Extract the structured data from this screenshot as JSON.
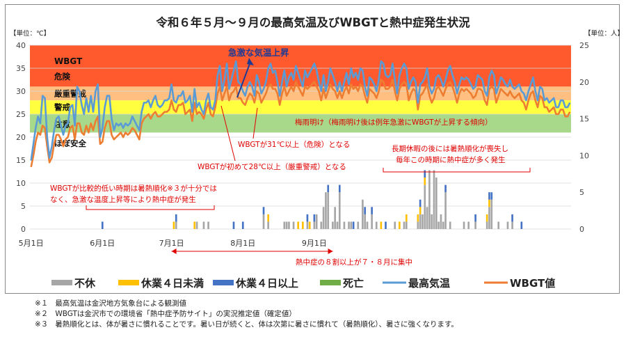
{
  "chart_data": {
    "type": "bar+line",
    "title": "令和６年５月～９月の最高気温及びWBGTと熱中症発生状況",
    "left_axis": {
      "unit_label": "【単位：℃】",
      "ylim": [
        0,
        40
      ],
      "ticks": [
        0,
        5,
        10,
        15,
        20,
        25,
        30,
        35,
        40
      ]
    },
    "right_axis": {
      "unit_label": "【単位：人】",
      "ylim": [
        0,
        25
      ],
      "ticks": [
        0,
        5,
        10,
        15,
        20,
        25
      ]
    },
    "x_ticks": [
      "5月1日",
      "6月1日",
      "7月1日",
      "8月1日",
      "9月1日"
    ],
    "bands": [
      {
        "label": "WBGT",
        "from": 31,
        "to": 40,
        "color": "#ff5a2e"
      },
      {
        "label": "危険",
        "from": 31,
        "to": 40,
        "color": "#ff5a2e"
      },
      {
        "label": "厳重警戒",
        "from": 28,
        "to": 31,
        "color": "#ffbf80"
      },
      {
        "label": "警戒",
        "from": 25,
        "to": 28,
        "color": "#ffff40"
      },
      {
        "label": "注意",
        "from": 21,
        "to": 25,
        "color": "#a8d88a"
      },
      {
        "label": "ほぼ安全",
        "from": 0,
        "to": 21,
        "color": "#ffffff"
      }
    ],
    "series": [
      {
        "name": "最高気温",
        "color": "#5b9bd5",
        "values": [
          14.9,
          18.5,
          22.0,
          24.5,
          23.0,
          29.0,
          28.5,
          20.0,
          15.5,
          18.0,
          21.5,
          24.0,
          24.5,
          22.5,
          20.5,
          22.5,
          23.0,
          26.5,
          27.0,
          22.5,
          31.0,
          30.0,
          27.0,
          25.0,
          28.5,
          25.5,
          29.0,
          25.5,
          30.0,
          31.5,
          20.0,
          22.0,
          26.5,
          29.0,
          29.0,
          24.0,
          21.5,
          23.0,
          22.5,
          23.0,
          22.0,
          23.0,
          22.5,
          23.0,
          24.5,
          23.5,
          22.5,
          21.5,
          25.5,
          27.5,
          27.5,
          28.0,
          26.5,
          28.0,
          29.0,
          27.0,
          26.5,
          27.0,
          28.0,
          28.0,
          28.5,
          31.5,
          28.0,
          27.5,
          29.0,
          29.0,
          30.0,
          27.5,
          28.0,
          29.0,
          25.5,
          30.5,
          26.5,
          27.5,
          26.0,
          25.0,
          28.0,
          29.5,
          26.5,
          26.0,
          28.0,
          33.5,
          35.5,
          30.0,
          32.5,
          36.0,
          30.5,
          32.5,
          34.5,
          36.5,
          32.0,
          31.5,
          30.0,
          29.0,
          31.0,
          32.0,
          31.0,
          29.0,
          33.5,
          32.0,
          29.5,
          30.5,
          32.0,
          35.0,
          36.0,
          34.0,
          34.5,
          32.0,
          29.0,
          32.0,
          34.5,
          31.0,
          33.0,
          34.0,
          32.5,
          35.5,
          34.0,
          32.5,
          31.0,
          34.5,
          33.0,
          34.0,
          35.0,
          36.0,
          34.5,
          32.0,
          30.0,
          33.5,
          30.0,
          32.0,
          35.0,
          33.5,
          32.0,
          30.0,
          32.0,
          30.0,
          32.0,
          34.0,
          31.5,
          35.0,
          33.0,
          34.0,
          32.5,
          35.0,
          34.5,
          31.0,
          29.0,
          33.0,
          32.5,
          31.5,
          30.0,
          32.5,
          36.5,
          36.0,
          33.5,
          33.0,
          33.5,
          36.0,
          32.5,
          29.5,
          33.5,
          35.0,
          36.0,
          35.0,
          30.5,
          32.0,
          33.0,
          32.0,
          27.5,
          31.5,
          32.0,
          33.0,
          35.0,
          31.0,
          29.5,
          30.5,
          33.0,
          33.5,
          32.5,
          31.0,
          32.5,
          34.5,
          35.5,
          33.5,
          32.0,
          29.5,
          31.5,
          33.0,
          32.5,
          33.0,
          32.5,
          31.5,
          30.5,
          31.0,
          33.5,
          33.0,
          32.5,
          30.0,
          29.0,
          33.0,
          34.5,
          33.5,
          29.5,
          31.0,
          33.0,
          32.5,
          31.5,
          31.0,
          32.5,
          31.0,
          30.5,
          31.0,
          31.5,
          30.0,
          29.5,
          28.0,
          30.0,
          31.5,
          33.0,
          30.0,
          28.0,
          31.0,
          30.5,
          28.0,
          28.5,
          27.5,
          28.0,
          28.5,
          26.5,
          26.5,
          28.0,
          28.0,
          26.5,
          26.5,
          27.5
        ]
      },
      {
        "name": "WBGT値",
        "color": "#ed7d31",
        "values": [
          13.5,
          16.0,
          19.0,
          21.0,
          20.5,
          22.5,
          22.0,
          18.0,
          14.5,
          15.5,
          18.5,
          20.5,
          20.5,
          19.5,
          18.0,
          19.5,
          20.0,
          22.0,
          22.5,
          19.5,
          23.0,
          23.0,
          21.0,
          20.5,
          22.5,
          21.0,
          23.0,
          21.5,
          23.5,
          24.5,
          18.5,
          19.0,
          22.0,
          23.5,
          23.5,
          20.5,
          19.5,
          20.0,
          20.5,
          21.0,
          20.0,
          21.0,
          20.5,
          21.0,
          22.0,
          21.5,
          20.5,
          19.5,
          23.0,
          24.0,
          24.5,
          25.0,
          24.0,
          25.0,
          25.5,
          24.5,
          24.5,
          25.0,
          25.5,
          25.5,
          26.0,
          28.0,
          26.0,
          25.5,
          27.0,
          27.0,
          27.5,
          25.0,
          25.5,
          26.0,
          23.5,
          27.5,
          25.0,
          25.5,
          25.0,
          24.0,
          26.0,
          27.5,
          25.0,
          24.5,
          26.5,
          29.5,
          31.0,
          28.0,
          29.5,
          31.0,
          28.0,
          29.5,
          30.0,
          31.0,
          28.5,
          28.5,
          27.5,
          27.0,
          28.5,
          29.5,
          29.0,
          27.5,
          30.0,
          29.5,
          27.5,
          28.5,
          29.5,
          31.0,
          31.5,
          30.5,
          30.5,
          29.5,
          27.0,
          29.5,
          31.0,
          29.0,
          30.0,
          31.0,
          30.0,
          32.0,
          31.0,
          30.0,
          29.0,
          31.0,
          30.5,
          31.0,
          31.5,
          32.0,
          31.0,
          30.0,
          28.0,
          30.5,
          28.5,
          30.0,
          31.5,
          30.5,
          30.0,
          28.5,
          30.0,
          28.5,
          30.0,
          31.0,
          29.5,
          31.5,
          30.5,
          31.0,
          30.0,
          31.5,
          31.0,
          29.0,
          27.5,
          30.5,
          30.0,
          29.5,
          28.5,
          30.0,
          32.5,
          32.0,
          30.5,
          30.5,
          31.0,
          32.5,
          30.0,
          28.0,
          30.5,
          31.5,
          32.0,
          31.5,
          28.0,
          29.5,
          30.5,
          30.0,
          26.0,
          29.0,
          29.5,
          30.5,
          31.5,
          29.0,
          27.5,
          28.5,
          30.5,
          31.0,
          30.0,
          29.0,
          30.5,
          31.5,
          32.0,
          31.0,
          29.5,
          27.5,
          29.5,
          30.5,
          30.0,
          30.5,
          30.0,
          29.5,
          28.5,
          29.0,
          30.5,
          30.5,
          30.0,
          28.0,
          27.0,
          30.5,
          31.0,
          30.5,
          27.5,
          29.0,
          30.5,
          30.0,
          29.5,
          29.0,
          30.0,
          29.0,
          28.5,
          29.0,
          29.5,
          28.0,
          27.5,
          26.0,
          28.0,
          29.5,
          30.0,
          28.0,
          26.5,
          29.0,
          28.5,
          26.5,
          26.5,
          25.5,
          26.0,
          26.5,
          25.0,
          25.0,
          26.0,
          26.0,
          24.5,
          24.5,
          25.5
        ]
      }
    ],
    "bar_series": [
      {
        "name": "不休",
        "color": "#a6a6a6"
      },
      {
        "name": "休業４日未満",
        "color": "#ffc000"
      },
      {
        "name": "休業４日以上",
        "color": "#4472c4"
      },
      {
        "name": "死亡",
        "color": "#70ad47"
      }
    ],
    "bars": [
      {
        "day": 31,
        "gray": 0,
        "yellow": 0,
        "blue": 1
      },
      {
        "day": 62,
        "gray": 0,
        "yellow": 1,
        "blue": 0
      },
      {
        "day": 63,
        "gray": 1,
        "yellow": 0,
        "blue": 1
      },
      {
        "day": 71,
        "gray": 0,
        "yellow": 1,
        "blue": 0
      },
      {
        "day": 72,
        "gray": 1,
        "yellow": 0,
        "blue": 0
      },
      {
        "day": 75,
        "gray": 1,
        "yellow": 0,
        "blue": 0
      },
      {
        "day": 77,
        "gray": 1,
        "yellow": 0,
        "blue": 0
      },
      {
        "day": 88,
        "gray": 0,
        "yellow": 0,
        "blue": 1
      },
      {
        "day": 92,
        "gray": 0,
        "yellow": 0,
        "blue": 1
      },
      {
        "day": 101,
        "gray": 2,
        "yellow": 0,
        "blue": 1
      },
      {
        "day": 103,
        "gray": 1,
        "yellow": 1,
        "blue": 0
      },
      {
        "day": 110,
        "gray": 1,
        "yellow": 0,
        "blue": 0
      },
      {
        "day": 111,
        "gray": 1,
        "yellow": 0,
        "blue": 0
      },
      {
        "day": 112,
        "gray": 1,
        "yellow": 0,
        "blue": 0
      },
      {
        "day": 114,
        "gray": 1,
        "yellow": 0,
        "blue": 0
      },
      {
        "day": 116,
        "gray": 0,
        "yellow": 1,
        "blue": 0
      },
      {
        "day": 118,
        "gray": 0,
        "yellow": 1,
        "blue": 0
      },
      {
        "day": 120,
        "gray": 1,
        "yellow": 0,
        "blue": 1
      },
      {
        "day": 121,
        "gray": 0,
        "yellow": 1,
        "blue": 0
      },
      {
        "day": 123,
        "gray": 1,
        "yellow": 0,
        "blue": 1
      },
      {
        "day": 124,
        "gray": 2,
        "yellow": 0,
        "blue": 0
      },
      {
        "day": 126,
        "gray": 1,
        "yellow": 0,
        "blue": 0
      },
      {
        "day": 127,
        "gray": 3,
        "yellow": 0,
        "blue": 0
      },
      {
        "day": 128,
        "gray": 5,
        "yellow": 0,
        "blue": 0
      },
      {
        "day": 129,
        "gray": 5,
        "yellow": 0,
        "blue": 1
      },
      {
        "day": 131,
        "gray": 1,
        "yellow": 0,
        "blue": 0
      },
      {
        "day": 132,
        "gray": 3,
        "yellow": 0,
        "blue": 0
      },
      {
        "day": 133,
        "gray": 1,
        "yellow": 0,
        "blue": 0
      },
      {
        "day": 134,
        "gray": 5,
        "yellow": 0,
        "blue": 1
      },
      {
        "day": 136,
        "gray": 1,
        "yellow": 0,
        "blue": 0
      },
      {
        "day": 138,
        "gray": 1,
        "yellow": 0,
        "blue": 0
      },
      {
        "day": 139,
        "gray": 1,
        "yellow": 0,
        "blue": 0
      },
      {
        "day": 140,
        "gray": 0,
        "yellow": 0,
        "blue": 1
      },
      {
        "day": 142,
        "gray": 1,
        "yellow": 0,
        "blue": 0
      },
      {
        "day": 144,
        "gray": 4,
        "yellow": 0,
        "blue": 0
      },
      {
        "day": 145,
        "gray": 2,
        "yellow": 0,
        "blue": 1
      },
      {
        "day": 146,
        "gray": 1,
        "yellow": 0,
        "blue": 0
      },
      {
        "day": 148,
        "gray": 2,
        "yellow": 0,
        "blue": 1
      },
      {
        "day": 150,
        "gray": 1,
        "yellow": 0,
        "blue": 0
      },
      {
        "day": 152,
        "gray": 0,
        "yellow": 1,
        "blue": 0
      },
      {
        "day": 154,
        "gray": 0,
        "yellow": 0,
        "blue": 1
      },
      {
        "day": 158,
        "gray": 1,
        "yellow": 0,
        "blue": 0
      },
      {
        "day": 160,
        "gray": 0,
        "yellow": 1,
        "blue": 0
      },
      {
        "day": 162,
        "gray": 1,
        "yellow": 0,
        "blue": 0
      },
      {
        "day": 163,
        "gray": 1,
        "yellow": 1,
        "blue": 0
      },
      {
        "day": 168,
        "gray": 1,
        "yellow": 1,
        "blue": 0
      },
      {
        "day": 169,
        "gray": 2,
        "yellow": 1,
        "blue": 1
      },
      {
        "day": 170,
        "gray": 2,
        "yellow": 0,
        "blue": 0
      },
      {
        "day": 171,
        "gray": 6,
        "yellow": 1,
        "blue": 1
      },
      {
        "day": 172,
        "gray": 3,
        "yellow": 0,
        "blue": 0
      },
      {
        "day": 173,
        "gray": 8,
        "yellow": 0,
        "blue": 0
      },
      {
        "day": 174,
        "gray": 2,
        "yellow": 0,
        "blue": 0
      },
      {
        "day": 175,
        "gray": 8,
        "yellow": 0,
        "blue": 0
      },
      {
        "day": 176,
        "gray": 7,
        "yellow": 0,
        "blue": 0
      },
      {
        "day": 177,
        "gray": 1,
        "yellow": 0,
        "blue": 0
      },
      {
        "day": 178,
        "gray": 2,
        "yellow": 0,
        "blue": 0
      },
      {
        "day": 179,
        "gray": 1,
        "yellow": 0,
        "blue": 0
      },
      {
        "day": 180,
        "gray": 5,
        "yellow": 0,
        "blue": 1
      },
      {
        "day": 182,
        "gray": 1,
        "yellow": 0,
        "blue": 0
      },
      {
        "day": 188,
        "gray": 1,
        "yellow": 0,
        "blue": 0
      },
      {
        "day": 190,
        "gray": 1,
        "yellow": 0,
        "blue": 0
      },
      {
        "day": 193,
        "gray": 1,
        "yellow": 0,
        "blue": 1
      },
      {
        "day": 198,
        "gray": 1,
        "yellow": 1,
        "blue": 0
      },
      {
        "day": 199,
        "gray": 3,
        "yellow": 1,
        "blue": 1
      },
      {
        "day": 200,
        "gray": 4,
        "yellow": 0,
        "blue": 1
      },
      {
        "day": 203,
        "gray": 1,
        "yellow": 0,
        "blue": 0
      },
      {
        "day": 207,
        "gray": 1,
        "yellow": 0,
        "blue": 0
      },
      {
        "day": 209,
        "gray": 1,
        "yellow": 0,
        "blue": 1
      },
      {
        "day": 213,
        "gray": 0,
        "yellow": 0,
        "blue": 1
      }
    ],
    "annotations": [
      {
        "text": "急激な気温上昇",
        "color": "#1f3a93"
      },
      {
        "text": "梅雨明け（梅雨明け後は例年急激にWBGTが上昇する傾向）",
        "color": "#e00000"
      },
      {
        "text": "WBGTが31℃以上（危険）となる",
        "color": "#e00000"
      },
      {
        "text": "WBGTが初めて28℃以上（厳重警戒）となる",
        "color": "#e00000"
      },
      {
        "text": "長期休暇の後には暑熱順化が喪失し",
        "color": "#e00000"
      },
      {
        "text": "毎年この時期に熱中症が多く発生",
        "color": "#e00000"
      },
      {
        "text": "WBGTが比較的低い時期は暑熱順化※３が十分ではなく、急激な温度上昇等により熱中症が発生",
        "color": "#e00000"
      },
      {
        "text": "熱中症の８割以上が７・８月に集中",
        "color": "#e00000"
      }
    ]
  },
  "notes": [
    {
      "mark": "※１",
      "text": "最高気温は金沢地方気象台による観測値"
    },
    {
      "mark": "※２",
      "text": "WBGTは金沢市での環境省「熱中症予防サイト」の実況推定値（確定値）"
    },
    {
      "mark": "※３",
      "text": "暑熱順化とは、体が暑さに慣れることです。暑い日が続くと、体は次第に暑さに慣れて（暑熱順化）、暑さに強くなります。"
    }
  ]
}
